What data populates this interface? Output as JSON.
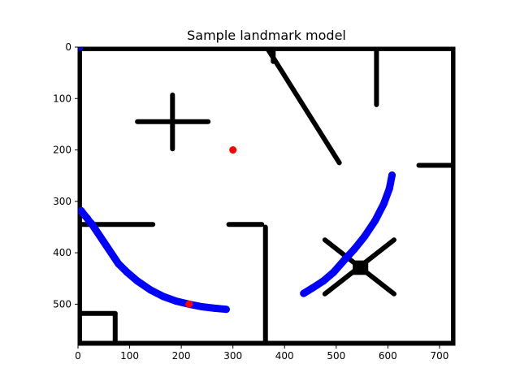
{
  "chart_data": {
    "type": "scatter",
    "title": "Sample landmark model",
    "xlabel": "",
    "ylabel": "",
    "xlim": [
      0,
      730
    ],
    "ylim": [
      580,
      0
    ],
    "y_inverted": true,
    "grid": false,
    "x_ticks": [
      0,
      100,
      200,
      300,
      400,
      500,
      600,
      700
    ],
    "y_ticks": [
      0,
      100,
      200,
      300,
      400,
      500
    ],
    "x_tick_labels": [
      "0",
      "100",
      "200",
      "300",
      "400",
      "500",
      "600",
      "700"
    ],
    "y_tick_labels": [
      "0",
      "100",
      "200",
      "300",
      "400",
      "500"
    ],
    "series": [
      {
        "role": "walls",
        "color": "#000000",
        "segments": [
          [
            [
              3,
              3
            ],
            [
              727,
              3
            ]
          ],
          [
            [
              3,
              3
            ],
            [
              3,
              576
            ]
          ],
          [
            [
              727,
              3
            ],
            [
              727,
              576
            ]
          ],
          [
            [
              3,
              576
            ],
            [
              727,
              576
            ]
          ],
          [
            [
              183,
              93
            ],
            [
              183,
              198
            ]
          ],
          [
            [
              115,
              145
            ],
            [
              252,
              145
            ]
          ],
          [
            [
              367,
              3
            ],
            [
              506,
              225
            ]
          ],
          [
            [
              378,
              3
            ],
            [
              378,
              28
            ]
          ],
          [
            [
              578,
              5
            ],
            [
              578,
              112
            ]
          ],
          [
            [
              660,
              230
            ],
            [
              727,
              230
            ]
          ],
          [
            [
              3,
              345
            ],
            [
              145,
              345
            ]
          ],
          [
            [
              292,
              345
            ],
            [
              356,
              345
            ]
          ],
          [
            [
              363,
              350
            ],
            [
              363,
              576
            ]
          ],
          [
            [
              3,
              518
            ],
            [
              72,
              518
            ]
          ],
          [
            [
              72,
              518
            ],
            [
              72,
              576
            ]
          ],
          [
            [
              478,
              375
            ],
            [
              612,
              480
            ]
          ],
          [
            [
              478,
              480
            ],
            [
              612,
              375
            ]
          ]
        ],
        "blocks": [
          [
            [
              532,
              415
            ],
            [
              562,
              443
            ]
          ]
        ]
      },
      {
        "role": "track",
        "color": "#0000ff",
        "points": [
          [
            3,
            0
          ],
          [
            6,
            318
          ],
          [
            12,
            326
          ],
          [
            18,
            333
          ],
          [
            22,
            339
          ],
          [
            26,
            343
          ],
          [
            78,
            421
          ],
          [
            95,
            438
          ],
          [
            115,
            455
          ],
          [
            140,
            472
          ],
          [
            165,
            485
          ],
          [
            190,
            494
          ],
          [
            215,
            500
          ],
          [
            240,
            505
          ],
          [
            265,
            508
          ],
          [
            287,
            510
          ],
          [
            437,
            479
          ],
          [
            455,
            468
          ],
          [
            475,
            455
          ],
          [
            495,
            438
          ],
          [
            515,
            415
          ],
          [
            535,
            393
          ],
          [
            555,
            368
          ],
          [
            575,
            338
          ],
          [
            592,
            305
          ],
          [
            603,
            275
          ],
          [
            608,
            249
          ]
        ]
      },
      {
        "role": "landmarks",
        "color": "#ff0000",
        "points": [
          [
            300,
            200
          ],
          [
            215,
            500
          ]
        ]
      }
    ]
  }
}
